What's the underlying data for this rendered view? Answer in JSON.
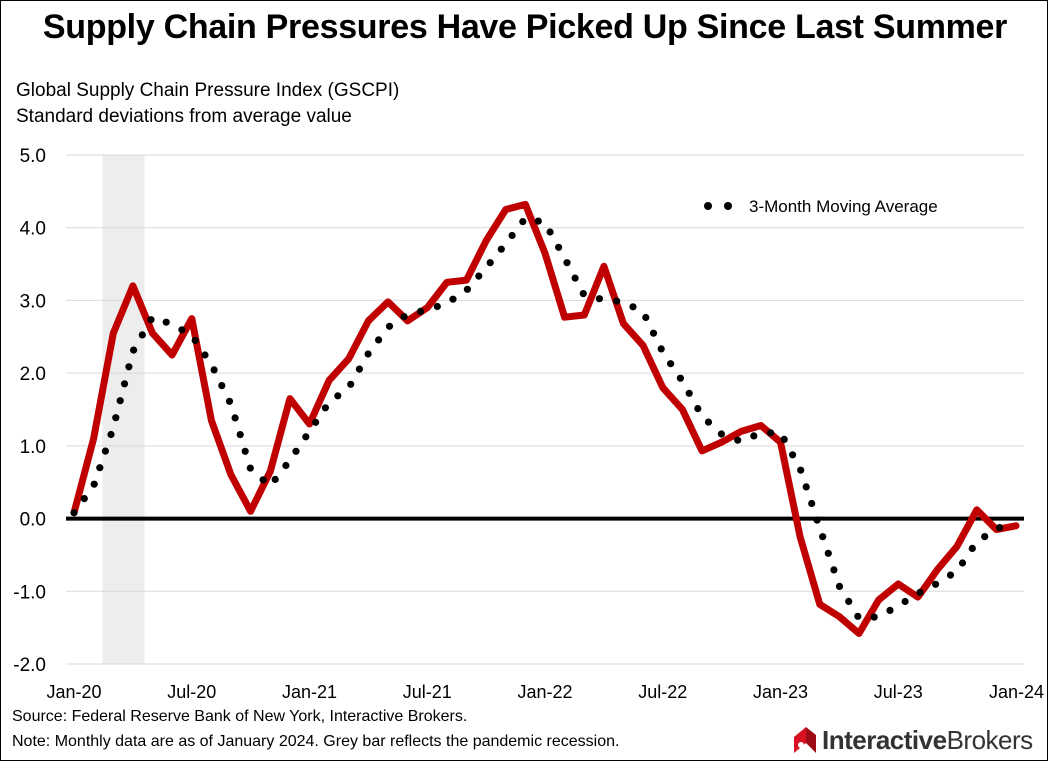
{
  "title": "Supply Chain Pressures Have Picked Up Since Last Summer",
  "subtitle_line1": "Global Supply Chain Pressure Index (GSCPI)",
  "subtitle_line2": "Standard deviations from average value",
  "footer": {
    "source": "Source: Federal Reserve Bank of New York, Interactive Brokers.",
    "note": "Note: Monthly data are as of January 2024. Grey bar reflects the pandemic recession."
  },
  "logo": {
    "text_bold": "Interactive",
    "text_regular": "Brokers",
    "icon": "interactive-brokers-logo-icon"
  },
  "colors": {
    "gscpi_line": "#C00000",
    "moving_average": "#000000",
    "recession_bar": "#EDEDED",
    "gridline": "#D9D9D9",
    "zero_line": "#000000",
    "logo_red": "#D81222"
  },
  "chart_data": {
    "type": "line",
    "title": "Supply Chain Pressures Have Picked Up Since Last Summer",
    "ylabel": "Standard deviations from average value",
    "ylim": [
      -2.0,
      5.0
    ],
    "yticks": [
      "-2.0",
      "-1.0",
      "0.0",
      "1.0",
      "2.0",
      "3.0",
      "4.0",
      "5.0"
    ],
    "ytick_values": [
      -2,
      -1,
      0,
      1,
      2,
      3,
      4,
      5
    ],
    "xtick_labels": [
      "Jan-20",
      "Jul-20",
      "Jan-21",
      "Jul-21",
      "Jan-22",
      "Jul-22",
      "Jan-23",
      "Jul-23",
      "Jan-24"
    ],
    "xtick_months": [
      "2020-01",
      "2020-07",
      "2021-01",
      "2021-07",
      "2022-01",
      "2022-07",
      "2023-01",
      "2023-07",
      "2024-01"
    ],
    "x": [
      "2020-01",
      "2020-02",
      "2020-03",
      "2020-04",
      "2020-05",
      "2020-06",
      "2020-07",
      "2020-08",
      "2020-09",
      "2020-10",
      "2020-11",
      "2020-12",
      "2021-01",
      "2021-02",
      "2021-03",
      "2021-04",
      "2021-05",
      "2021-06",
      "2021-07",
      "2021-08",
      "2021-09",
      "2021-10",
      "2021-11",
      "2021-12",
      "2022-01",
      "2022-02",
      "2022-03",
      "2022-04",
      "2022-05",
      "2022-06",
      "2022-07",
      "2022-08",
      "2022-09",
      "2022-10",
      "2022-11",
      "2022-12",
      "2023-01",
      "2023-02",
      "2023-03",
      "2023-04",
      "2023-05",
      "2023-06",
      "2023-07",
      "2023-08",
      "2023-09",
      "2023-10",
      "2023-11",
      "2023-12",
      "2024-01"
    ],
    "grid": "horizontal",
    "legend": "top-right",
    "shaded_region": {
      "start": "2020-02",
      "end": "2020-04"
    },
    "reference_line": 0,
    "series": [
      {
        "name": "",
        "style": "solid",
        "values": [
          0.08,
          1.1,
          2.55,
          3.2,
          2.55,
          2.25,
          2.75,
          1.35,
          0.6,
          0.1,
          0.65,
          1.65,
          1.3,
          1.9,
          2.2,
          2.72,
          2.98,
          2.72,
          2.9,
          3.25,
          3.28,
          3.82,
          4.25,
          4.32,
          3.65,
          2.77,
          2.8,
          3.47,
          2.68,
          2.38,
          1.8,
          1.5,
          0.93,
          1.05,
          1.2,
          1.28,
          1.05,
          -0.25,
          -1.18,
          -1.35,
          -1.58,
          -1.12,
          -0.9,
          -1.08,
          -0.7,
          -0.38,
          0.12,
          -0.15,
          -0.1
        ]
      },
      {
        "name": "3-Month Moving Average",
        "style": "dotted",
        "values": [
          0.08,
          0.45,
          1.25,
          2.3,
          2.77,
          2.67,
          2.52,
          2.12,
          1.57,
          0.68,
          0.45,
          0.8,
          1.2,
          1.6,
          1.8,
          2.27,
          2.63,
          2.81,
          2.87,
          2.96,
          3.14,
          3.45,
          3.78,
          4.13,
          4.07,
          3.58,
          3.07,
          3.01,
          2.98,
          2.84,
          2.29,
          1.89,
          1.41,
          1.16,
          1.06,
          1.18,
          1.18,
          0.69,
          -0.13,
          -0.93,
          -1.37,
          -1.35,
          -1.2,
          -1.03,
          -0.89,
          -0.72,
          -0.32,
          -0.14,
          -0.04
        ]
      }
    ]
  }
}
